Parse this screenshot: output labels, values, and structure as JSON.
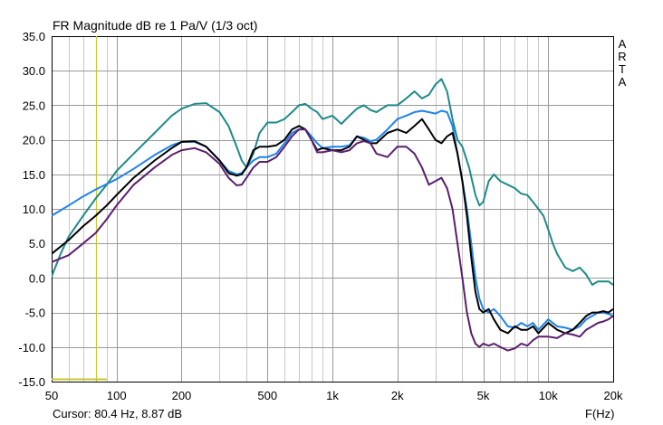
{
  "title": "FR Magnitude dB re 1 Pa/V (1/3 oct)",
  "watermark": [
    "A",
    "R",
    "T",
    "A"
  ],
  "cursor_label": "Cursor: 80.4 Hz, 8.87 dB",
  "x_unit_label": "F(Hz)",
  "colors": {
    "grid": "#c8c8c8",
    "axis": "#000000",
    "cursor": "#c8c832",
    "background": "#ffffff"
  },
  "chart_data": {
    "type": "line",
    "title": "FR Magnitude dB re 1 Pa/V (1/3 oct)",
    "xlabel": "F(Hz)",
    "ylabel": "",
    "x_scale": "log",
    "xlim": [
      50,
      20000
    ],
    "ylim": [
      -15,
      35
    ],
    "grid": true,
    "xticks": [
      50,
      100,
      200,
      500,
      1000,
      2000,
      5000,
      10000,
      20000
    ],
    "xtick_labels": [
      "50",
      "100",
      "200",
      "500",
      "1k",
      "2k",
      "5k",
      "10k",
      "20k"
    ],
    "yticks": [
      -15,
      -10,
      -5,
      0,
      5,
      10,
      15,
      20,
      25,
      30,
      35
    ],
    "ytick_labels": [
      "-15.0",
      "-10.0",
      "-5.0",
      "0.0",
      "5.0",
      "10.0",
      "15.0",
      "20.0",
      "25.0",
      "30.0",
      "35.0"
    ],
    "cursor": {
      "x": 80.4,
      "y": 8.87
    },
    "series": [
      {
        "color": "#1e8a8a",
        "x": [
          50,
          55,
          60,
          70,
          80,
          90,
          100,
          120,
          150,
          180,
          200,
          230,
          260,
          300,
          330,
          360,
          380,
          400,
          430,
          460,
          500,
          550,
          600,
          650,
          700,
          750,
          800,
          850,
          900,
          1000,
          1100,
          1200,
          1300,
          1400,
          1500,
          1600,
          1800,
          2000,
          2200,
          2400,
          2600,
          2800,
          3000,
          3200,
          3400,
          3600,
          3800,
          4000,
          4300,
          4600,
          4800,
          5000,
          5300,
          5600,
          6000,
          6500,
          7000,
          7500,
          8000,
          8500,
          9000,
          9500,
          10000,
          10500,
          11000,
          12000,
          13000,
          14000,
          15000,
          16000,
          17000,
          18000,
          19000,
          20000
        ],
        "y": [
          0.2,
          3.5,
          6,
          9,
          11.5,
          13.5,
          15.5,
          18,
          21,
          23.5,
          24.5,
          25.2,
          25.3,
          24,
          22,
          19,
          17,
          16,
          18,
          21,
          22.5,
          22.5,
          23,
          24,
          25,
          25.2,
          24.5,
          24,
          23,
          23.5,
          22.3,
          23.5,
          24.5,
          25,
          24.3,
          24,
          25,
          25,
          26,
          27,
          26,
          26.5,
          28,
          28.8,
          27,
          23,
          20,
          19,
          16,
          12,
          10.5,
          11,
          14,
          15,
          14,
          13.5,
          13,
          12.2,
          12,
          11,
          10,
          9,
          7,
          5,
          3.5,
          1.5,
          1,
          1.5,
          0.5,
          -1,
          -0.5,
          -0.5,
          -0.5,
          -1
        ]
      },
      {
        "color": "#1e82e6",
        "x": [
          50,
          60,
          70,
          80,
          90,
          100,
          120,
          150,
          180,
          200,
          230,
          260,
          300,
          330,
          360,
          380,
          400,
          430,
          460,
          500,
          550,
          600,
          650,
          700,
          750,
          800,
          850,
          900,
          1000,
          1100,
          1200,
          1300,
          1400,
          1500,
          1600,
          1800,
          2000,
          2200,
          2400,
          2600,
          2800,
          3000,
          3200,
          3400,
          3600,
          3800,
          4000,
          4200,
          4400,
          4600,
          4800,
          5000,
          5300,
          5600,
          6000,
          6500,
          7000,
          7500,
          8000,
          8500,
          9000,
          10000,
          11000,
          12000,
          13000,
          14000,
          15000,
          16000,
          17000,
          18000,
          19000,
          20000
        ],
        "y": [
          9,
          10.5,
          11.8,
          12.8,
          13.6,
          14.3,
          15.8,
          17.8,
          19.2,
          19.7,
          19.7,
          19,
          17,
          15.5,
          15,
          15.2,
          16,
          17,
          17.5,
          17.5,
          18,
          19.5,
          21,
          21.5,
          21.5,
          20.5,
          19.5,
          18.8,
          19,
          19,
          19.2,
          20.5,
          20.3,
          19.8,
          20,
          21.5,
          23,
          23.5,
          24,
          24.2,
          24,
          23.8,
          24.2,
          24,
          22,
          18,
          14,
          10,
          5,
          0,
          -3,
          -4.5,
          -5,
          -4.5,
          -5.5,
          -7,
          -7.2,
          -6.5,
          -7,
          -6.5,
          -7.5,
          -6,
          -7,
          -7.2,
          -7.5,
          -7,
          -6,
          -5.5,
          -5,
          -5,
          -5.2,
          -5.5
        ]
      },
      {
        "color": "#000000",
        "x": [
          50,
          60,
          70,
          80,
          90,
          100,
          120,
          150,
          180,
          200,
          230,
          260,
          300,
          330,
          360,
          380,
          400,
          430,
          460,
          500,
          550,
          600,
          650,
          700,
          750,
          800,
          850,
          900,
          1000,
          1100,
          1200,
          1300,
          1400,
          1500,
          1600,
          1800,
          2000,
          2200,
          2400,
          2600,
          2800,
          3000,
          3200,
          3400,
          3600,
          3800,
          4000,
          4200,
          4400,
          4600,
          4800,
          5000,
          5300,
          5600,
          6000,
          6500,
          7000,
          7500,
          8000,
          8500,
          9000,
          10000,
          11000,
          12000,
          13000,
          14000,
          15000,
          16000,
          17000,
          18000,
          19000,
          20000
        ],
        "y": [
          3.5,
          5.5,
          7.5,
          9,
          10.5,
          12,
          14.5,
          17,
          18.8,
          19.7,
          19.8,
          19,
          17,
          15.2,
          14.8,
          15,
          16,
          18.5,
          19,
          19,
          19.2,
          20,
          21.5,
          22,
          21.5,
          20,
          18.5,
          18.8,
          18.5,
          18.5,
          19,
          20.5,
          20,
          19.5,
          19.5,
          21,
          21.5,
          21,
          22,
          23,
          21.5,
          20,
          19.5,
          20.5,
          21,
          18,
          14,
          9,
          3,
          -2,
          -4.5,
          -5,
          -4.5,
          -6,
          -7.5,
          -8,
          -7,
          -7.5,
          -7.5,
          -7,
          -8,
          -6.5,
          -7.5,
          -8,
          -7.5,
          -6.5,
          -5.5,
          -5,
          -5,
          -4.8,
          -5,
          -4.5
        ]
      },
      {
        "color": "#5a1e6e",
        "x": [
          50,
          60,
          70,
          80,
          90,
          100,
          120,
          150,
          180,
          200,
          230,
          260,
          300,
          330,
          360,
          380,
          400,
          430,
          460,
          500,
          550,
          600,
          650,
          700,
          750,
          800,
          850,
          900,
          1000,
          1100,
          1200,
          1300,
          1400,
          1500,
          1600,
          1800,
          2000,
          2200,
          2400,
          2600,
          2800,
          3000,
          3200,
          3400,
          3600,
          3800,
          4000,
          4200,
          4400,
          4600,
          4800,
          5000,
          5300,
          5600,
          6000,
          6500,
          7000,
          7500,
          8000,
          8500,
          9000,
          10000,
          11000,
          12000,
          13000,
          14000,
          15000,
          16000,
          17000,
          18000,
          19000,
          20000
        ],
        "y": [
          2.3,
          3.3,
          5,
          6.5,
          8.5,
          10.5,
          13.5,
          16,
          17.8,
          18.5,
          18.8,
          18.2,
          16.5,
          14.5,
          13.4,
          13.5,
          14.5,
          16,
          16.8,
          16.8,
          17.5,
          19,
          20.5,
          21.5,
          21.5,
          20,
          18.2,
          18.2,
          18.5,
          18.2,
          18.5,
          19.5,
          19.8,
          19.5,
          18,
          17.5,
          19,
          19,
          18,
          16,
          13.5,
          14,
          14.5,
          13,
          10,
          5,
          0,
          -5,
          -8,
          -9.5,
          -10,
          -9.5,
          -9.8,
          -9.5,
          -10,
          -10.5,
          -10.2,
          -9.5,
          -9.8,
          -9,
          -8.5,
          -8.5,
          -8.7,
          -8,
          -8.2,
          -8.5,
          -7.5,
          -7,
          -6.5,
          -6.3,
          -6,
          -5.5
        ]
      }
    ]
  }
}
